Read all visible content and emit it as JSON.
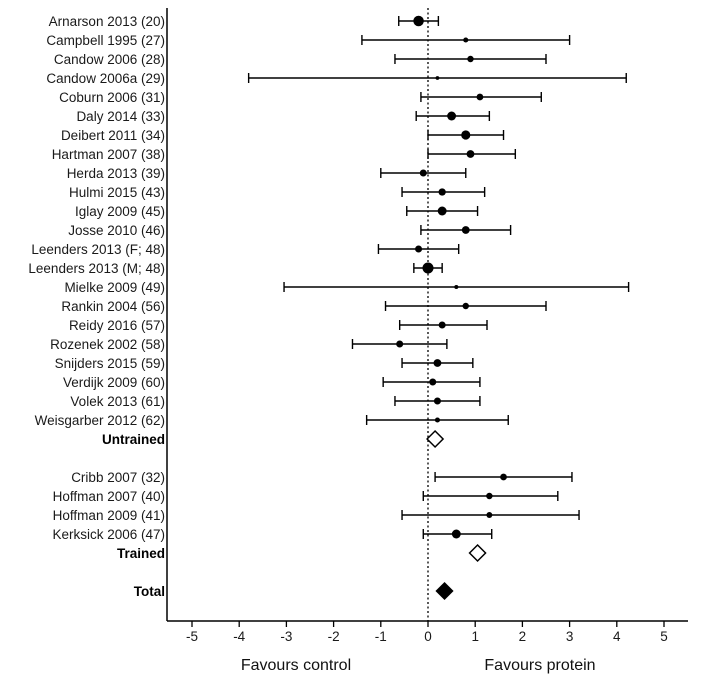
{
  "chart_data": {
    "type": "forest",
    "xlim": [
      -5.5,
      5.5
    ],
    "xticks": [
      -5,
      -4,
      -3,
      -2,
      -1,
      0,
      1,
      2,
      3,
      4,
      5
    ],
    "reference_line": 0,
    "favours_left": "Favours control",
    "favours_right": "Favours protein",
    "rows": [
      {
        "kind": "study",
        "label": "Arnarson 2013 (20)",
        "est": -0.2,
        "lo": -0.62,
        "hi": 0.22,
        "weight": 3
      },
      {
        "kind": "study",
        "label": "Campbell 1995 (27)",
        "est": 0.8,
        "lo": -1.4,
        "hi": 3.0,
        "weight": 1
      },
      {
        "kind": "study",
        "label": "Candow 2006 (28)",
        "est": 0.9,
        "lo": -0.7,
        "hi": 2.5,
        "weight": 1.5
      },
      {
        "kind": "study",
        "label": "Candow 2006a (29)",
        "est": 0.2,
        "lo": -3.8,
        "hi": 4.2,
        "weight": 0.5
      },
      {
        "kind": "study",
        "label": "Coburn 2006 (31)",
        "est": 1.1,
        "lo": -0.15,
        "hi": 2.4,
        "weight": 1.6
      },
      {
        "kind": "study",
        "label": "Daly 2014 (33)",
        "est": 0.5,
        "lo": -0.25,
        "hi": 1.3,
        "weight": 2.4
      },
      {
        "kind": "study",
        "label": "Deibert 2011 (34)",
        "est": 0.8,
        "lo": 0.0,
        "hi": 1.6,
        "weight": 2.5
      },
      {
        "kind": "study",
        "label": "Hartman 2007 (38)",
        "est": 0.9,
        "lo": 0.0,
        "hi": 1.85,
        "weight": 2
      },
      {
        "kind": "study",
        "label": "Herda 2013 (39)",
        "est": -0.1,
        "lo": -1.0,
        "hi": 0.8,
        "weight": 1.7
      },
      {
        "kind": "study",
        "label": "Hulmi 2015 (43)",
        "est": 0.3,
        "lo": -0.55,
        "hi": 1.2,
        "weight": 1.8
      },
      {
        "kind": "study",
        "label": "Iglay 2009 (45)",
        "est": 0.3,
        "lo": -0.45,
        "hi": 1.05,
        "weight": 2.4
      },
      {
        "kind": "study",
        "label": "Josse 2010 (46)",
        "est": 0.8,
        "lo": -0.15,
        "hi": 1.75,
        "weight": 2
      },
      {
        "kind": "study",
        "label": "Leenders 2013 (F; 48)",
        "est": -0.2,
        "lo": -1.05,
        "hi": 0.65,
        "weight": 1.7
      },
      {
        "kind": "study",
        "label": "Leenders 2013 (M; 48)",
        "est": 0.0,
        "lo": -0.3,
        "hi": 0.3,
        "weight": 3.2
      },
      {
        "kind": "study",
        "label": "Mielke 2009 (49)",
        "est": 0.6,
        "lo": -3.05,
        "hi": 4.25,
        "weight": 0.6
      },
      {
        "kind": "study",
        "label": "Rankin 2004 (56)",
        "est": 0.8,
        "lo": -0.9,
        "hi": 2.5,
        "weight": 1.5
      },
      {
        "kind": "study",
        "label": "Reidy 2016 (57)",
        "est": 0.3,
        "lo": -0.6,
        "hi": 1.25,
        "weight": 1.7
      },
      {
        "kind": "study",
        "label": "Rozenek 2002 (58)",
        "est": -0.6,
        "lo": -1.6,
        "hi": 0.4,
        "weight": 1.7
      },
      {
        "kind": "study",
        "label": "Snijders 2015 (59)",
        "est": 0.2,
        "lo": -0.55,
        "hi": 0.95,
        "weight": 2
      },
      {
        "kind": "study",
        "label": "Verdijk 2009 (60)",
        "est": 0.1,
        "lo": -0.95,
        "hi": 1.1,
        "weight": 1.7
      },
      {
        "kind": "study",
        "label": "Volek 2013 (61)",
        "est": 0.2,
        "lo": -0.7,
        "hi": 1.1,
        "weight": 1.7
      },
      {
        "kind": "study",
        "label": "Weisgarber 2012 (62)",
        "est": 0.2,
        "lo": -1.3,
        "hi": 1.7,
        "weight": 1
      },
      {
        "kind": "summary",
        "label": "Untrained",
        "est": 0.15,
        "filled": false
      },
      {
        "kind": "gap"
      },
      {
        "kind": "study",
        "label": "Cribb 2007 (32)",
        "est": 1.6,
        "lo": 0.15,
        "hi": 3.05,
        "weight": 1.6
      },
      {
        "kind": "study",
        "label": "Hoffman 2007 (40)",
        "est": 1.3,
        "lo": -0.1,
        "hi": 2.75,
        "weight": 1.5
      },
      {
        "kind": "study",
        "label": "Hoffman 2009 (41)",
        "est": 1.3,
        "lo": -0.55,
        "hi": 3.2,
        "weight": 1.3
      },
      {
        "kind": "study",
        "label": "Kerksick 2006 (47)",
        "est": 0.6,
        "lo": -0.1,
        "hi": 1.35,
        "weight": 2.4
      },
      {
        "kind": "summary",
        "label": "Trained",
        "est": 1.05,
        "filled": false
      },
      {
        "kind": "gap"
      },
      {
        "kind": "summary",
        "label": "Total",
        "est": 0.35,
        "filled": true
      }
    ]
  }
}
